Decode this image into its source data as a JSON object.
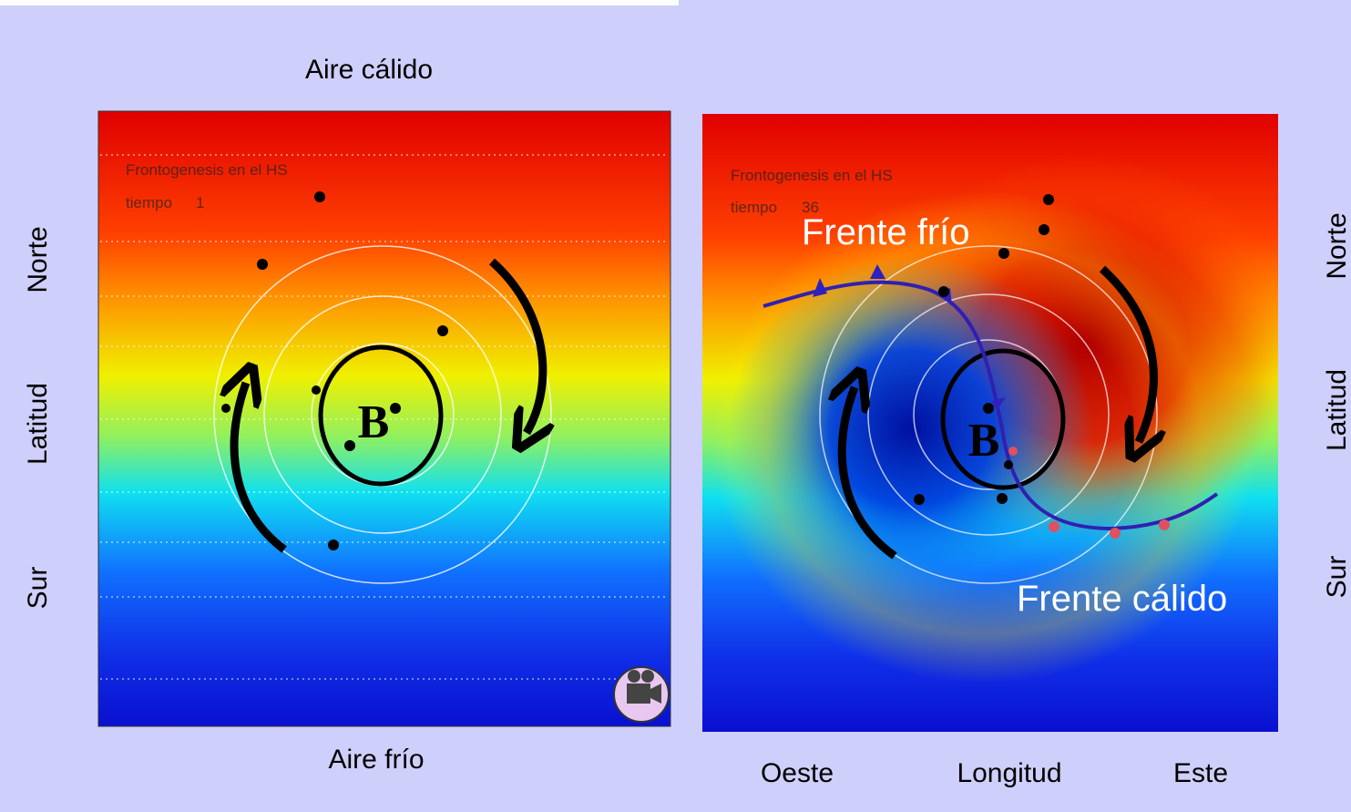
{
  "left_panel": {
    "top_label": "Aire cálido",
    "bottom_label": "Aire frío",
    "y_labels": [
      "Norte",
      "Latitud",
      "Sur"
    ],
    "inner_title": "Frontogenesis en el HS",
    "time_label": "tiempo",
    "time_value": "1",
    "center_label": "B"
  },
  "right_panel": {
    "inner_title": "Frontogenesis en el HS",
    "time_label": "tiempo",
    "time_value": "36",
    "center_label": "B",
    "cold_front_label": "Frente frío",
    "warm_front_label": "Frente cálido",
    "x_labels": [
      "Oeste",
      "Longitud",
      "Este"
    ],
    "y_labels": [
      "Norte",
      "Latitud",
      "Sur"
    ]
  }
}
